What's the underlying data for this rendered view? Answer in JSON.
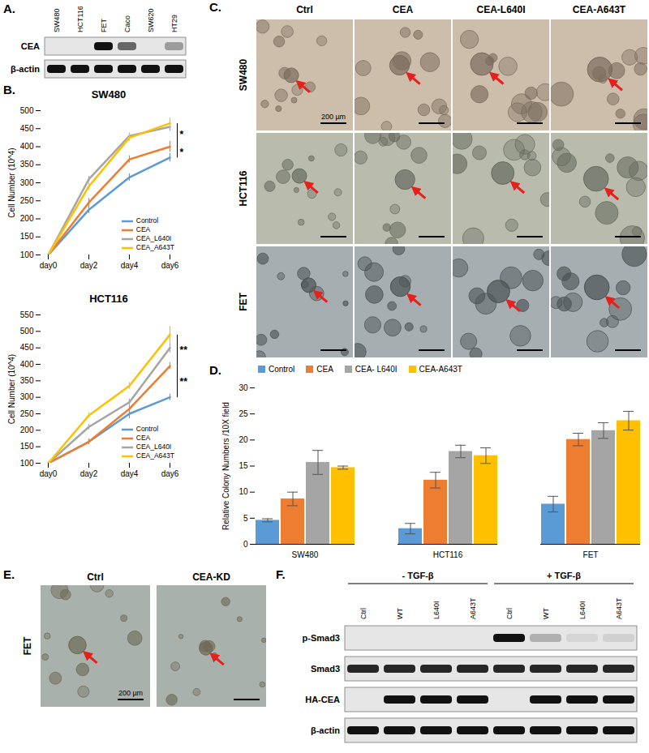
{
  "chart_data": [
    {
      "type": "line",
      "panel": "B.",
      "title": "SW480",
      "y_label": "Cell Number (10^4)",
      "categories": [
        "day0",
        "day2",
        "day4",
        "day6"
      ],
      "ylim": [
        100,
        500
      ],
      "yticks": [
        100,
        150,
        200,
        250,
        300,
        350,
        400,
        450,
        500
      ],
      "legend": "bottom-right",
      "series": [
        {
          "name": "Control",
          "color": "#5b9bd5",
          "values": [
            100,
            225,
            315,
            370
          ],
          "errors": [
            0,
            10,
            10,
            12
          ]
        },
        {
          "name": "CEA",
          "color": "#ed7d31",
          "values": [
            100,
            245,
            365,
            400
          ],
          "errors": [
            0,
            12,
            10,
            15
          ]
        },
        {
          "name": "CEA_L640I",
          "color": "#a5a5a5",
          "values": [
            100,
            310,
            430,
            455
          ],
          "errors": [
            0,
            8,
            8,
            12
          ]
        },
        {
          "name": "CEA_A643T",
          "color": "#ffc000",
          "values": [
            100,
            290,
            425,
            465
          ],
          "errors": [
            0,
            10,
            10,
            15
          ]
        }
      ],
      "annotations": [
        {
          "text": "*",
          "x": "day6",
          "from": "CEA",
          "to": "CEA_A643T"
        },
        {
          "text": "*",
          "x": "day6",
          "from": "Control",
          "to": "CEA"
        }
      ]
    },
    {
      "type": "line",
      "title": "HCT116",
      "y_label": "Cell Number (10^4)",
      "categories": [
        "day0",
        "day2",
        "day4",
        "day6"
      ],
      "ylim": [
        100,
        550
      ],
      "yticks": [
        100,
        150,
        200,
        250,
        300,
        350,
        400,
        450,
        500,
        550
      ],
      "legend": "bottom-right",
      "series": [
        {
          "name": "Control",
          "color": "#5b9bd5",
          "values": [
            100,
            165,
            250,
            300
          ],
          "errors": [
            0,
            8,
            15,
            10
          ]
        },
        {
          "name": "CEA",
          "color": "#ed7d31",
          "values": [
            100,
            165,
            265,
            395
          ],
          "errors": [
            0,
            8,
            10,
            10
          ]
        },
        {
          "name": "CEA_L640I",
          "color": "#a5a5a5",
          "values": [
            100,
            210,
            285,
            450
          ],
          "errors": [
            0,
            8,
            10,
            15
          ]
        },
        {
          "name": "CEA_A643T",
          "color": "#ffc000",
          "values": [
            100,
            245,
            335,
            490
          ],
          "errors": [
            0,
            8,
            10,
            25
          ]
        }
      ],
      "annotations": [
        {
          "text": "**",
          "x": "day6",
          "from": "CEA",
          "to": "CEA_A643T"
        },
        {
          "text": "**",
          "x": "day6",
          "from": "Control",
          "to": "CEA"
        }
      ]
    },
    {
      "type": "bar",
      "panel": "D.",
      "y_label": "Relative Colony Numbers /10X field",
      "categories": [
        "SW480",
        "HCT116",
        "FET"
      ],
      "ylim": [
        0,
        30
      ],
      "yticks": [
        0,
        5,
        10,
        15,
        20,
        25,
        30
      ],
      "legend": "top",
      "series": [
        {
          "name": "Control",
          "color": "#5b9bd5",
          "values": [
            4.6,
            3.0,
            7.7
          ],
          "errors": [
            0.3,
            1.0,
            1.5
          ]
        },
        {
          "name": "CEA",
          "color": "#ed7d31",
          "values": [
            8.7,
            12.3,
            20.1
          ],
          "errors": [
            1.3,
            1.5,
            1.2
          ]
        },
        {
          "name": "CEA- L640I",
          "color": "#a5a5a5",
          "values": [
            15.7,
            17.8,
            21.8
          ],
          "errors": [
            2.3,
            1.2,
            1.5
          ]
        },
        {
          "name": "CEA-A643T",
          "color": "#ffc000",
          "values": [
            14.7,
            17.0,
            23.7
          ],
          "errors": [
            0.3,
            1.5,
            1.8
          ]
        }
      ]
    }
  ],
  "panel_A": {
    "panel": "A.",
    "lanes": [
      "SW480",
      "HCT116",
      "FET",
      "Caco",
      "SW620",
      "HT29"
    ],
    "rows": [
      {
        "label": "CEA",
        "intensity": [
          0,
          0,
          1,
          0.6,
          0,
          0.35
        ]
      },
      {
        "label": "β-actin",
        "intensity": [
          1,
          1,
          1,
          1,
          1,
          1
        ]
      }
    ]
  },
  "panel_C": {
    "panel": "C.",
    "columns": [
      "Ctrl",
      "CEA",
      "CEA-L640I",
      "CEA-A643T"
    ],
    "rows": [
      "SW480",
      "HCT116",
      "FET"
    ],
    "scale_bar": "200 µm"
  },
  "panel_E": {
    "panel": "E.",
    "row": "FET",
    "columns": [
      "Ctrl",
      "CEA-KD"
    ],
    "scale_bar": "200 µm"
  },
  "panel_F": {
    "panel": "F.",
    "groups": [
      {
        "label": "- TGF-β",
        "lane_count": 4
      },
      {
        "label": "+ TGF-β",
        "lane_count": 4
      }
    ],
    "lanes": [
      "Ctrl",
      "WT",
      "L640I",
      "A643T",
      "Ctrl",
      "WT",
      "L640I",
      "A643T"
    ],
    "rows": [
      {
        "label": "p-Smad3",
        "intensity": [
          0,
          0,
          0,
          0,
          1,
          0.25,
          0.08,
          0.1
        ]
      },
      {
        "label": "Smad3",
        "intensity": [
          0.9,
          0.9,
          0.9,
          0.9,
          0.9,
          0.9,
          0.9,
          0.9
        ]
      },
      {
        "label": "HA-CEA",
        "intensity": [
          0,
          1,
          1,
          1,
          0,
          1,
          1,
          1
        ]
      },
      {
        "label": "β-actin",
        "intensity": [
          1,
          1,
          1,
          1,
          1,
          1,
          1,
          1
        ]
      }
    ]
  }
}
